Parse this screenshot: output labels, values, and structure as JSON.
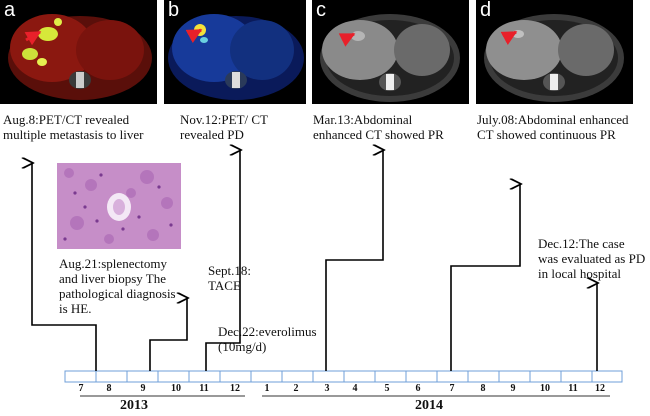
{
  "panels": [
    {
      "letter": "a",
      "modality": "PET/CT fusion",
      "arrow_color": "#e8202a"
    },
    {
      "letter": "b",
      "modality": "PET/CT fusion",
      "arrow_color": "#e8202a"
    },
    {
      "letter": "c",
      "modality": "Contrast-enhanced CT",
      "arrow_color": "#e8202a"
    },
    {
      "letter": "d",
      "modality": "Contrast-enhanced CT",
      "arrow_color": "#e8202a"
    }
  ],
  "events": {
    "aug8": "Aug.8:PET/CT revealed multiple metastasis to liver",
    "aug21": "Aug.21:splenectomy and liver biopsy The pathological diagnosis is HE.",
    "sept18": "Sept.18: TACE",
    "nov12": "Nov.12:PET/ CT revealed PD",
    "dec22": "Dec.22:everolimus (10mg/d)",
    "mar13": "Mar.13:Abdominal enhanced CT showed PR",
    "jul08": "July.08:Abdominal enhanced CT showed continuous PR",
    "dec12": "Dec.12:The case was evaluated as PD in local hospital"
  },
  "months": [
    "7",
    "8",
    "9",
    "10",
    "11",
    "12",
    "1",
    "2",
    "3",
    "4",
    "5",
    "6",
    "7",
    "8",
    "9",
    "10",
    "11",
    "12"
  ],
  "years": {
    "y2013": "2013",
    "y2014": "2014"
  },
  "colors": {
    "timeline_border": "#6f9fd8",
    "line": "#000000",
    "arrow": "#e8202a"
  }
}
